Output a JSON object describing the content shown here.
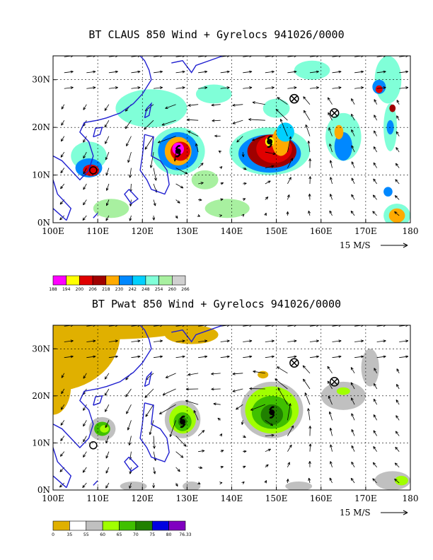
{
  "chart_data": [
    {
      "type": "heatmap",
      "title": "BT CLAUS 850 Wind + Gyrelocs 941026/0000",
      "x_ticks": [
        "100E",
        "110E",
        "120E",
        "130E",
        "140E",
        "150E",
        "160E",
        "170E",
        "180"
      ],
      "y_ticks": [
        "0N",
        "10N",
        "20N",
        "30N"
      ],
      "xlim": [
        100,
        180
      ],
      "ylim": [
        0,
        35
      ],
      "vector_reference": "15 M/S",
      "legend": {
        "labels": [
          "188",
          "194",
          "200",
          "206",
          "218",
          "230",
          "242",
          "248",
          "254",
          "260",
          "266"
        ],
        "colors": [
          "#ff00ff",
          "#ffff00",
          "#e00000",
          "#a00000",
          "#ffaa00",
          "#0088ff",
          "#00d0ff",
          "#80ffd8",
          "#a8f0a0",
          "#d0d0d0"
        ]
      },
      "gyre_centers": [
        {
          "lon": 128,
          "lat": 15,
          "symbol": "hurricane"
        },
        {
          "lon": 148.5,
          "lat": 17,
          "symbol": "hurricane"
        },
        {
          "lon": 154,
          "lat": 26,
          "symbol": "crossed-circle"
        },
        {
          "lon": 163,
          "lat": 23,
          "symbol": "crossed-circle"
        },
        {
          "lon": 109,
          "lat": 11,
          "symbol": "open-circle"
        }
      ]
    },
    {
      "type": "heatmap",
      "title": "BT Pwat 850 Wind + Gyrelocs 941026/0000",
      "x_ticks": [
        "100E",
        "110E",
        "120E",
        "130E",
        "140E",
        "150E",
        "160E",
        "170E",
        "180"
      ],
      "y_ticks": [
        "0N",
        "10N",
        "20N",
        "30N"
      ],
      "xlim": [
        100,
        180
      ],
      "ylim": [
        0,
        35
      ],
      "vector_reference": "15 M/S",
      "legend": {
        "labels": [
          "0",
          "35",
          "55",
          "60",
          "65",
          "70",
          "75",
          "80",
          "76.33"
        ],
        "colors": [
          "#e0b000",
          "#ffffff",
          "#c0c0c0",
          "#a0ff00",
          "#40c000",
          "#208000",
          "#0000e0",
          "#8000c0"
        ]
      },
      "gyre_centers": [
        {
          "lon": 129,
          "lat": 14.5,
          "symbol": "hurricane"
        },
        {
          "lon": 149,
          "lat": 16.5,
          "symbol": "hurricane"
        },
        {
          "lon": 154,
          "lat": 27,
          "symbol": "crossed-circle"
        },
        {
          "lon": 163,
          "lat": 23,
          "symbol": "crossed-circle"
        },
        {
          "lon": 109,
          "lat": 9.5,
          "symbol": "open-circle"
        }
      ]
    }
  ]
}
